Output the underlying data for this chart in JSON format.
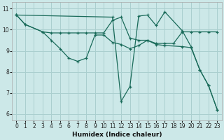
{
  "bg_color": "#cce8e8",
  "plot_bg_color": "#cce8e8",
  "grid_color": "#aacfcf",
  "line_color": "#1a6b5a",
  "xlabel": "Humidex (Indice chaleur)",
  "xlim": [
    -0.5,
    23.5
  ],
  "ylim": [
    5.7,
    11.3
  ],
  "yticks": [
    6,
    7,
    8,
    9,
    10,
    11
  ],
  "xticks": [
    0,
    1,
    2,
    3,
    4,
    5,
    6,
    7,
    8,
    9,
    10,
    11,
    12,
    13,
    14,
    15,
    16,
    17,
    18,
    19,
    20,
    21,
    22,
    23
  ],
  "lines": [
    {
      "x": [
        0,
        1,
        3,
        4,
        5,
        6,
        7,
        8,
        9,
        10,
        11,
        12,
        13,
        14,
        15,
        16,
        17,
        18,
        19,
        20,
        21,
        22,
        23
      ],
      "y": [
        10.7,
        10.25,
        9.9,
        9.85,
        9.85,
        9.85,
        9.85,
        9.85,
        9.85,
        9.85,
        10.45,
        10.6,
        9.6,
        9.5,
        9.5,
        9.35,
        9.35,
        9.35,
        9.9,
        9.9,
        9.9,
        9.9,
        9.9
      ]
    },
    {
      "x": [
        0,
        1,
        3,
        4,
        5,
        6,
        7,
        8,
        9,
        10,
        11,
        12,
        13,
        14,
        15,
        16,
        17,
        19,
        20,
        21,
        22,
        23
      ],
      "y": [
        10.7,
        10.25,
        9.9,
        9.5,
        9.1,
        8.65,
        8.5,
        8.65,
        9.75,
        9.75,
        9.4,
        9.3,
        9.1,
        9.25,
        9.5,
        9.3,
        9.25,
        9.2,
        9.15,
        8.1,
        7.35,
        6.2
      ]
    },
    {
      "x": [
        0,
        11,
        12,
        13,
        14,
        15,
        16,
        17,
        19,
        20,
        21,
        22,
        23
      ],
      "y": [
        10.7,
        10.6,
        6.6,
        7.3,
        10.65,
        10.7,
        10.2,
        10.85,
        9.95,
        9.2,
        8.1,
        7.35,
        6.2
      ]
    }
  ]
}
